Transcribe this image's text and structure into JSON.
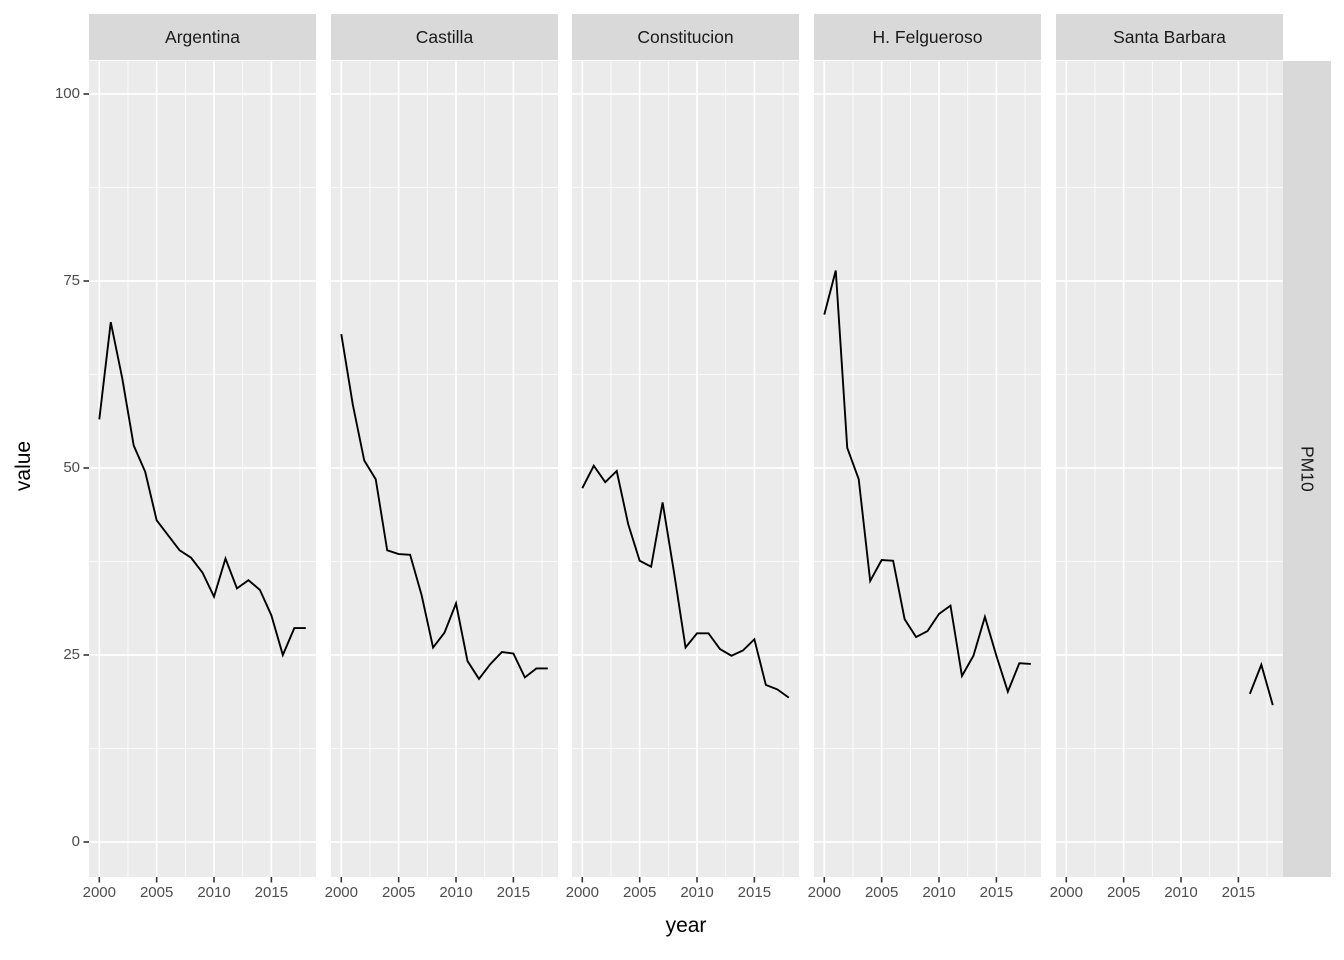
{
  "chart_data": {
    "type": "line",
    "title": "",
    "xlabel": "year",
    "ylabel": "value",
    "right_strip_label": "PM10",
    "legend_position": "none",
    "grid": "on",
    "x_ticks": [
      "2000",
      "2005",
      "2010",
      "2015"
    ],
    "y_ticks": [
      "100",
      "75",
      "50",
      "25",
      "0"
    ],
    "x_tick_years": [
      2000,
      2005,
      2010,
      2015
    ],
    "y_tick_values": [
      100,
      75,
      50,
      25,
      0
    ],
    "x_minor_years": [
      2002.5,
      2007.5,
      2012.5,
      2017.5
    ],
    "y_minor_values": [
      12.5,
      37.5,
      62.5,
      87.5
    ],
    "xlim": [
      1999.1,
      2018.9
    ],
    "ylim": [
      -4.5,
      104.5
    ],
    "x": [
      2000,
      2001,
      2002,
      2003,
      2004,
      2005,
      2006,
      2007,
      2008,
      2009,
      2010,
      2011,
      2012,
      2013,
      2014,
      2015,
      2016,
      2017,
      2018
    ],
    "facets": [
      {
        "label": "Argentina",
        "values": [
          56.5,
          69.5,
          62.0,
          53.0,
          49.5,
          43.0,
          41.0,
          39.0,
          38.0,
          36.0,
          32.8,
          37.9,
          33.9,
          35.0,
          33.7,
          30.3,
          25.0,
          28.6,
          28.6
        ]
      },
      {
        "label": "Castilla",
        "values": [
          67.9,
          58.5,
          51.0,
          48.5,
          39.0,
          38.5,
          38.4,
          33.0,
          26.0,
          28.0,
          31.9,
          24.2,
          21.8,
          23.8,
          25.4,
          25.2,
          22.0,
          23.2,
          23.2
        ]
      },
      {
        "label": "Constitucion",
        "values": [
          47.3,
          50.3,
          48.1,
          49.6,
          42.5,
          37.6,
          36.8,
          45.4,
          36.0,
          26.0,
          27.9,
          27.9,
          25.8,
          24.9,
          25.6,
          27.1,
          21.0,
          20.4,
          19.3
        ]
      },
      {
        "label": "H. Felgueroso",
        "values": [
          70.5,
          76.4,
          52.7,
          48.5,
          34.9,
          37.7,
          37.6,
          29.8,
          27.4,
          28.2,
          30.5,
          31.6,
          22.2,
          24.9,
          30.1,
          24.9,
          20.1,
          23.9,
          23.8
        ]
      },
      {
        "label": "Santa Barbara",
        "values": [
          null,
          null,
          null,
          null,
          null,
          null,
          null,
          null,
          null,
          null,
          null,
          null,
          null,
          null,
          null,
          null,
          19.8,
          23.7,
          18.3
        ]
      }
    ],
    "colors": {
      "panel-bg": "#ebebeb",
      "strip-bg": "#d9d9d9",
      "strip-text": "#1a1a1a",
      "tick-text": "#4d4d4d",
      "grid": "#ffffff",
      "tick-mark": "#333333",
      "line": "#000000"
    }
  }
}
